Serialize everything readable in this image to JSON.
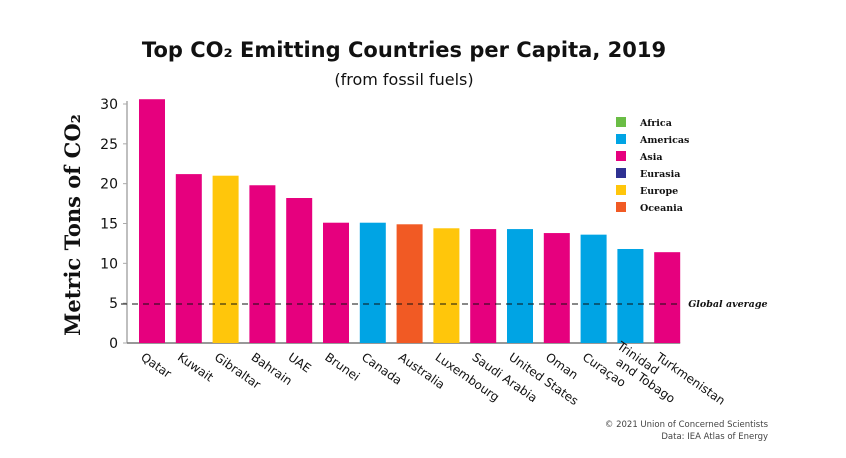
{
  "chart_data": {
    "type": "bar",
    "title": "Top CO₂ Emitting Countries per Capita, 2019",
    "subtitle": "(from fossil fuels)",
    "xlabel": "",
    "ylabel": "Metric Tons of CO₂",
    "ylim": [
      0,
      30
    ],
    "yticks": [
      0,
      5,
      10,
      15,
      20,
      25,
      30
    ],
    "grid": false,
    "categories": [
      "Qatar",
      "Kuwait",
      "Gibraltar",
      "Bahrain",
      "UAE",
      "Brunei",
      "Canada",
      "Australia",
      "Luxembourg",
      "Saudi Arabia",
      "United States",
      "Oman",
      "Curaçao",
      "Trinidad and Tobago",
      "Turkmenistan"
    ],
    "category_label_lines": [
      [
        "Qatar"
      ],
      [
        "Kuwait"
      ],
      [
        "Gibraltar"
      ],
      [
        "Bahrain"
      ],
      [
        "UAE"
      ],
      [
        "Brunei"
      ],
      [
        "Canada"
      ],
      [
        "Australia"
      ],
      [
        "Luxembourg"
      ],
      [
        "Saudi Arabia"
      ],
      [
        "United States"
      ],
      [
        "Oman"
      ],
      [
        "Curaçao"
      ],
      [
        "Trinidad",
        "and Tobago"
      ],
      [
        "Turkmenistan"
      ]
    ],
    "values": [
      30.6,
      21.2,
      21.0,
      19.8,
      18.2,
      15.1,
      15.1,
      14.9,
      14.4,
      14.3,
      14.3,
      13.8,
      13.6,
      11.8,
      11.4
    ],
    "regions": [
      "Asia",
      "Asia",
      "Europe",
      "Asia",
      "Asia",
      "Asia",
      "Americas",
      "Oceania",
      "Europe",
      "Asia",
      "Americas",
      "Asia",
      "Americas",
      "Americas",
      "Asia"
    ],
    "legend": {
      "position": "top-right",
      "entries": [
        {
          "name": "Africa",
          "color": "#6abd45"
        },
        {
          "name": "Americas",
          "color": "#00a4e4"
        },
        {
          "name": "Asia",
          "color": "#e6007e"
        },
        {
          "name": "Eurasia",
          "color": "#2e3192"
        },
        {
          "name": "Europe",
          "color": "#ffc60b"
        },
        {
          "name": "Oceania",
          "color": "#f15a24"
        }
      ]
    },
    "reference_line": {
      "label": "Global average",
      "value": 4.9,
      "style": "dashed"
    }
  },
  "credits": {
    "copyright": "© 2021 Union of Concerned Scientists",
    "source": "Data: IEA Atlas of Energy"
  }
}
